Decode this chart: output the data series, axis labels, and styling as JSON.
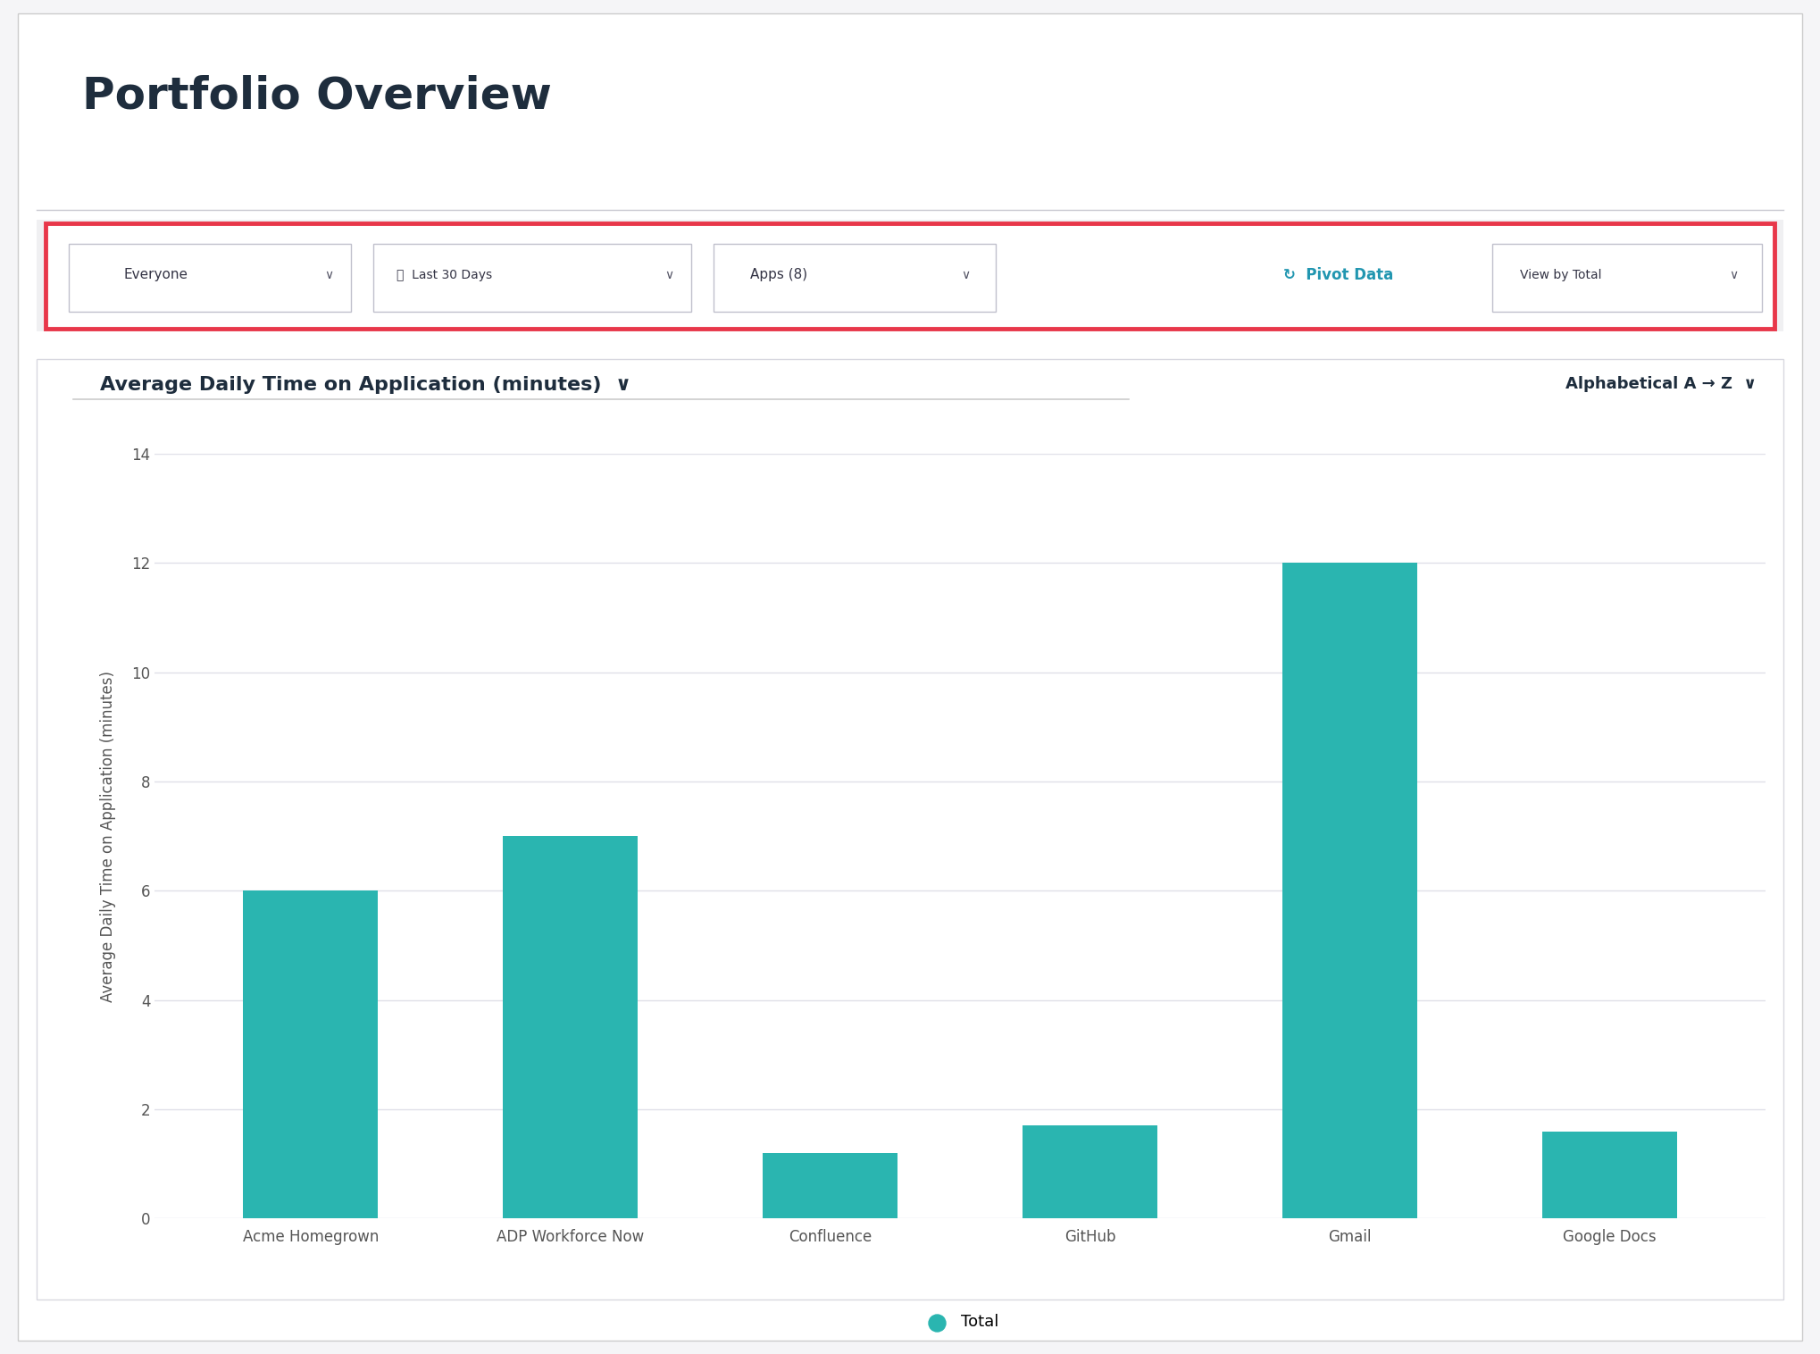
{
  "title": "Portfolio Overview",
  "page_bg": "#f5f5f7",
  "content_bg": "#ffffff",
  "title_color": "#1e2d3d",
  "title_fontsize": 36,
  "filter_bar_border": "#e8374a",
  "filter_bar_bg": "#f0f0f2",
  "pivot_color": "#2196b0",
  "chart_title": "Average Daily Time on Application (minutes)",
  "chart_title_chevron": "∨",
  "chart_title_fontsize": 16,
  "sort_label": "Alphabetical A → Z",
  "sort_chevron": "∨",
  "sort_fontsize": 13,
  "ylabel": "Average Daily Time on Application (minutes)",
  "ylabel_fontsize": 12,
  "categories": [
    "Acme Homegrown",
    "ADP Workforce Now",
    "Confluence",
    "GitHub",
    "Gmail",
    "Google Docs"
  ],
  "values": [
    6.0,
    7.0,
    1.2,
    1.7,
    12.0,
    1.6
  ],
  "bar_color": "#2ab5b0",
  "ylim": [
    0,
    14
  ],
  "yticks": [
    0,
    2,
    4,
    6,
    8,
    10,
    12,
    14
  ],
  "grid_color": "#e0e0e8",
  "tick_color": "#555555",
  "tick_fontsize": 12,
  "legend_label": "Total",
  "legend_color": "#2ab5b0",
  "legend_fontsize": 13,
  "chart_panel_border": "#d8d8e0",
  "underline_color": "#cccccc"
}
